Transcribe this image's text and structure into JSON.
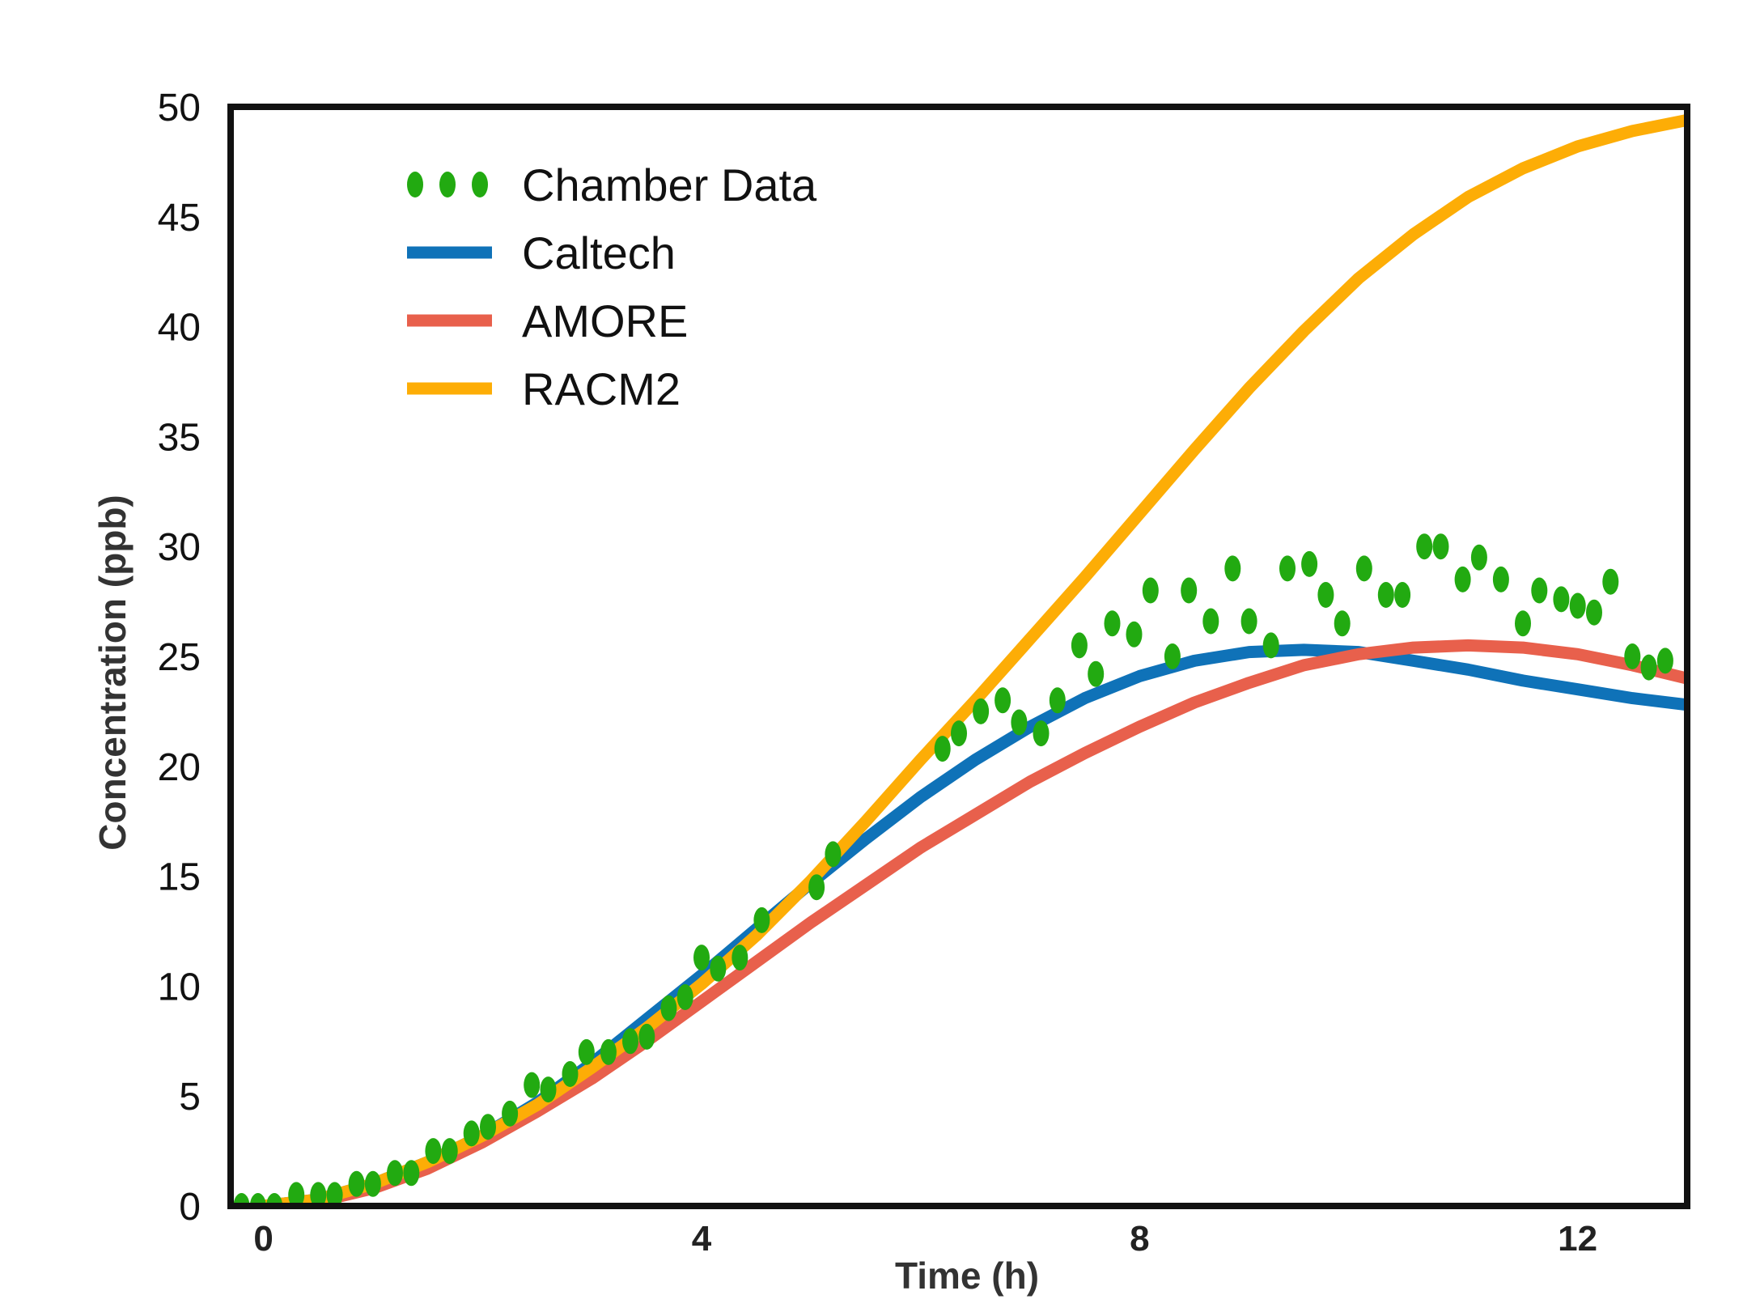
{
  "chart_data": {
    "type": "line",
    "title": "",
    "xlabel": "Time (h)",
    "ylabel": "Concentration (ppb)",
    "xlim": [
      -0.3,
      13
    ],
    "ylim": [
      0,
      50
    ],
    "xticks": [
      0,
      4,
      8,
      12
    ],
    "xtick_labels": [
      "0",
      "4",
      "8",
      "12"
    ],
    "yticks": [
      0,
      5,
      10,
      15,
      20,
      25,
      30,
      35,
      40,
      45,
      50
    ],
    "ytick_labels": [
      "0",
      "5",
      "10",
      "15",
      "20",
      "25",
      "30",
      "35",
      "40",
      "45",
      "50"
    ],
    "grid": false,
    "legend_position": "top-left",
    "series": [
      {
        "name": "Chamber Data",
        "kind": "scatter",
        "color": "#22aa11",
        "x": [
          -0.2,
          -0.05,
          0.1,
          0.3,
          0.5,
          0.65,
          0.85,
          1.0,
          1.2,
          1.35,
          1.55,
          1.7,
          1.9,
          2.05,
          2.25,
          2.45,
          2.6,
          2.8,
          2.95,
          3.15,
          3.35,
          3.5,
          3.7,
          3.85,
          4.0,
          4.15,
          4.35,
          4.55,
          5.05,
          5.2,
          6.2,
          6.35,
          6.55,
          6.75,
          6.9,
          7.1,
          7.25,
          7.45,
          7.6,
          7.75,
          7.95,
          8.1,
          8.3,
          8.45,
          8.65,
          8.85,
          9.0,
          9.2,
          9.35,
          9.55,
          9.7,
          9.85,
          10.05,
          10.25,
          10.4,
          10.6,
          10.75,
          10.95,
          11.1,
          11.3,
          11.5,
          11.65,
          11.85,
          12.0,
          12.15,
          12.3,
          12.5,
          12.65,
          12.8
        ],
        "y": [
          0,
          0,
          0,
          0.5,
          0.5,
          0.5,
          1.0,
          1.0,
          1.5,
          1.5,
          2.5,
          2.5,
          3.3,
          3.6,
          4.2,
          5.5,
          5.3,
          6.0,
          7.0,
          7.0,
          7.5,
          7.7,
          9.0,
          9.5,
          11.3,
          10.8,
          11.3,
          13.0,
          14.5,
          16.0,
          20.8,
          21.5,
          22.5,
          23.0,
          22.0,
          21.5,
          23.0,
          25.5,
          24.2,
          26.5,
          26.0,
          28.0,
          25.0,
          28.0,
          26.6,
          29.0,
          26.6,
          25.5,
          29.0,
          29.2,
          27.8,
          26.5,
          29.0,
          27.8,
          27.8,
          30.0,
          30.0,
          28.5,
          29.5,
          28.5,
          26.5,
          28.0,
          27.6,
          27.3,
          27.0,
          28.4,
          25.0,
          24.5,
          24.8
        ]
      },
      {
        "name": "Caltech",
        "kind": "line",
        "color": "#0f72b8",
        "x": [
          0,
          0.5,
          1,
          1.5,
          2,
          2.5,
          3,
          3.5,
          4,
          4.5,
          5,
          5.5,
          6,
          6.5,
          7,
          7.5,
          8,
          8.5,
          9,
          9.5,
          10,
          10.5,
          11,
          11.5,
          12,
          12.5,
          13
        ],
        "y": [
          0,
          0.3,
          1.0,
          2.0,
          3.2,
          4.7,
          6.5,
          8.5,
          10.5,
          12.6,
          14.7,
          16.7,
          18.6,
          20.3,
          21.8,
          23.1,
          24.1,
          24.8,
          25.2,
          25.3,
          25.2,
          24.8,
          24.4,
          23.9,
          23.5,
          23.1,
          22.8
        ]
      },
      {
        "name": "AMORE",
        "kind": "line",
        "color": "#e8604c",
        "x": [
          0,
          0.5,
          1,
          1.5,
          2,
          2.5,
          3,
          3.5,
          4,
          4.5,
          5,
          5.5,
          6,
          6.5,
          7,
          7.5,
          8,
          8.5,
          9,
          9.5,
          10,
          10.5,
          11,
          11.5,
          12,
          12.5,
          13
        ],
        "y": [
          0,
          0.2,
          0.8,
          1.7,
          2.9,
          4.3,
          5.8,
          7.5,
          9.3,
          11.1,
          12.9,
          14.6,
          16.3,
          17.8,
          19.3,
          20.6,
          21.8,
          22.9,
          23.8,
          24.6,
          25.1,
          25.4,
          25.5,
          25.4,
          25.1,
          24.6,
          24.0
        ]
      },
      {
        "name": "RACM2",
        "kind": "line",
        "color": "#fdad06",
        "x": [
          0,
          0.5,
          1,
          1.5,
          2,
          2.5,
          3,
          3.5,
          4,
          4.5,
          5,
          5.5,
          6,
          6.5,
          7,
          7.5,
          8,
          8.5,
          9,
          9.5,
          10,
          10.5,
          11,
          11.5,
          12,
          12.5,
          13
        ],
        "y": [
          0,
          0.3,
          1.0,
          2.0,
          3.2,
          4.6,
          6.3,
          8.1,
          10.1,
          12.3,
          14.8,
          17.5,
          20.3,
          23.0,
          25.8,
          28.6,
          31.5,
          34.4,
          37.2,
          39.8,
          42.2,
          44.2,
          45.9,
          47.2,
          48.2,
          48.9,
          49.4
        ]
      }
    ]
  }
}
